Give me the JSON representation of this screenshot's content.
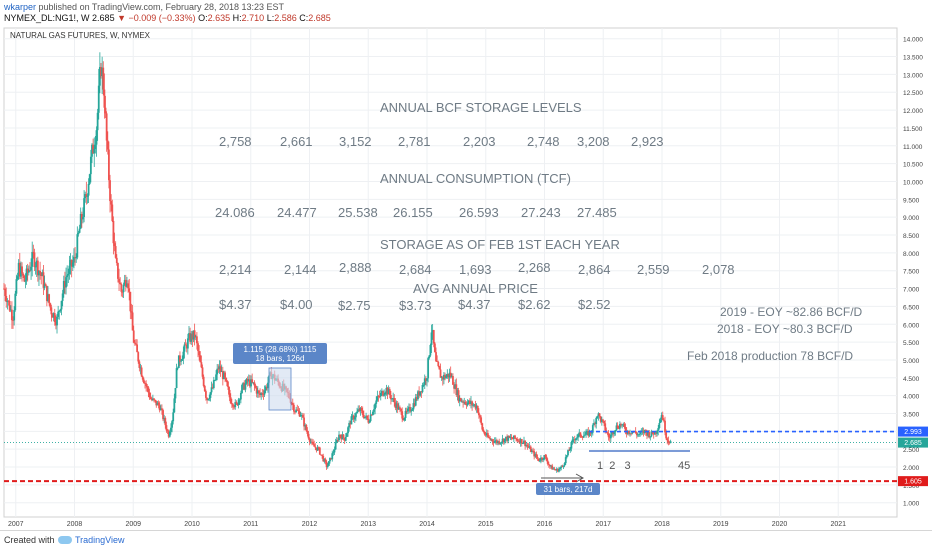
{
  "header": {
    "author": "wkarper",
    "published_text": "published on TradingView.com, February 28, 2018 13:23 EST",
    "symbol": "NYMEX_DL:NG1!, W",
    "last": "2.685",
    "change": "▼ −0.009 (−0.33%)",
    "o_label": "O:",
    "o_val": "2.635",
    "h_label": "H:",
    "h_val": "2.710",
    "l_label": "L:",
    "l_val": "2.586",
    "c_label": "C:",
    "c_val": "2.685"
  },
  "footer": {
    "created_with": "Created with",
    "brand": "TradingView"
  },
  "colors": {
    "up": "#26a69a",
    "down": "#ef5350",
    "annotation_text": "#6f7b85",
    "blue_dash": "#2962ff",
    "red_dash": "#e01b1b",
    "box_fill": "#5b86c8"
  },
  "chart_data": {
    "type": "candlestick",
    "title": "NATURAL GAS FUTURES, W, NYMEX",
    "x_ticks": [
      "2007",
      "2008",
      "2009",
      "2010",
      "2011",
      "2012",
      "2013",
      "2014",
      "2015",
      "2016",
      "2017",
      "2018",
      "2019",
      "2020",
      "2021"
    ],
    "y_ticks": [
      "14.000",
      "13.500",
      "13.000",
      "12.500",
      "12.000",
      "11.500",
      "11.000",
      "10.500",
      "10.000",
      "9.500",
      "9.000",
      "8.500",
      "8.000",
      "7.500",
      "7.000",
      "6.500",
      "6.000",
      "5.500",
      "5.000",
      "4.500",
      "4.000",
      "3.500",
      "3.000",
      "2.500",
      "2.000",
      "1.500",
      "1.000"
    ],
    "x_range": [
      2006.8,
      2022.0
    ],
    "y_range": [
      0.6,
      14.3
    ],
    "price_path": [
      [
        2006.8,
        7.0
      ],
      [
        2006.95,
        6.2
      ],
      [
        2007.05,
        7.6
      ],
      [
        2007.15,
        7.2
      ],
      [
        2007.3,
        7.9
      ],
      [
        2007.45,
        7.3
      ],
      [
        2007.6,
        6.4
      ],
      [
        2007.7,
        6.1
      ],
      [
        2007.85,
        7.3
      ],
      [
        2008.0,
        7.8
      ],
      [
        2008.1,
        8.8
      ],
      [
        2008.2,
        9.6
      ],
      [
        2008.3,
        10.8
      ],
      [
        2008.38,
        11.6
      ],
      [
        2008.45,
        13.3
      ],
      [
        2008.5,
        12.6
      ],
      [
        2008.55,
        11.0
      ],
      [
        2008.62,
        9.3
      ],
      [
        2008.7,
        7.7
      ],
      [
        2008.8,
        6.9
      ],
      [
        2008.9,
        7.4
      ],
      [
        2009.0,
        5.6
      ],
      [
        2009.15,
        4.6
      ],
      [
        2009.3,
        3.9
      ],
      [
        2009.45,
        3.7
      ],
      [
        2009.6,
        2.9
      ],
      [
        2009.67,
        3.4
      ],
      [
        2009.75,
        4.9
      ],
      [
        2009.85,
        5.2
      ],
      [
        2009.95,
        5.6
      ],
      [
        2010.05,
        5.7
      ],
      [
        2010.15,
        4.8
      ],
      [
        2010.25,
        3.9
      ],
      [
        2010.35,
        4.2
      ],
      [
        2010.45,
        4.8
      ],
      [
        2010.55,
        4.5
      ],
      [
        2010.65,
        3.9
      ],
      [
        2010.75,
        3.7
      ],
      [
        2010.85,
        4.2
      ],
      [
        2010.95,
        4.4
      ],
      [
        2011.05,
        4.3
      ],
      [
        2011.15,
        4.0
      ],
      [
        2011.25,
        4.2
      ],
      [
        2011.35,
        4.6
      ],
      [
        2011.45,
        4.4
      ],
      [
        2011.55,
        4.2
      ],
      [
        2011.65,
        4.0
      ],
      [
        2011.75,
        3.6
      ],
      [
        2011.85,
        3.5
      ],
      [
        2011.95,
        3.0
      ],
      [
        2012.05,
        2.6
      ],
      [
        2012.15,
        2.5
      ],
      [
        2012.3,
        2.0
      ],
      [
        2012.4,
        2.4
      ],
      [
        2012.5,
        2.9
      ],
      [
        2012.6,
        2.8
      ],
      [
        2012.7,
        3.3
      ],
      [
        2012.85,
        3.6
      ],
      [
        2013.0,
        3.3
      ],
      [
        2013.15,
        3.9
      ],
      [
        2013.3,
        4.2
      ],
      [
        2013.45,
        3.8
      ],
      [
        2013.6,
        3.4
      ],
      [
        2013.75,
        3.7
      ],
      [
        2013.9,
        4.2
      ],
      [
        2014.0,
        4.6
      ],
      [
        2014.08,
        5.9
      ],
      [
        2014.15,
        4.9
      ],
      [
        2014.25,
        4.5
      ],
      [
        2014.4,
        4.6
      ],
      [
        2014.55,
        3.9
      ],
      [
        2014.7,
        3.8
      ],
      [
        2014.85,
        3.7
      ],
      [
        2014.95,
        3.0
      ],
      [
        2015.05,
        2.8
      ],
      [
        2015.2,
        2.7
      ],
      [
        2015.35,
        2.8
      ],
      [
        2015.5,
        2.8
      ],
      [
        2015.65,
        2.7
      ],
      [
        2015.8,
        2.4
      ],
      [
        2015.9,
        2.2
      ],
      [
        2016.0,
        2.3
      ],
      [
        2016.1,
        2.0
      ],
      [
        2016.2,
        1.9
      ],
      [
        2016.3,
        2.0
      ],
      [
        2016.4,
        2.4
      ],
      [
        2016.5,
        2.8
      ],
      [
        2016.6,
        2.9
      ],
      [
        2016.7,
        2.9
      ],
      [
        2016.8,
        3.0
      ],
      [
        2016.9,
        3.5
      ],
      [
        2017.0,
        3.2
      ],
      [
        2017.1,
        2.8
      ],
      [
        2017.2,
        3.1
      ],
      [
        2017.3,
        3.2
      ],
      [
        2017.4,
        3.0
      ],
      [
        2017.5,
        3.0
      ],
      [
        2017.6,
        2.9
      ],
      [
        2017.7,
        3.0
      ],
      [
        2017.8,
        2.9
      ],
      [
        2017.9,
        3.0
      ],
      [
        2018.0,
        3.5
      ],
      [
        2018.08,
        2.8
      ],
      [
        2018.15,
        2.7
      ]
    ],
    "grid": "on"
  },
  "text": {
    "storage_title": "ANNUAL BCF STORAGE LEVELS",
    "storage_values": [
      "2,758",
      "2,661",
      "3,152",
      "2,781",
      "2,203",
      "2,748",
      "3,208",
      "2,923"
    ],
    "consumption_title": "ANNUAL CONSUMPTION (TCF)",
    "consumption_values": [
      "24.086",
      "24.477",
      "25.538",
      "26.155",
      "26.593",
      "27.243",
      "27.485"
    ],
    "feb_storage_title": "STORAGE AS OF FEB 1ST EACH YEAR",
    "feb_storage_values": [
      "2,214",
      "2,144",
      "2,888",
      "2,684",
      "1,693",
      "2,268",
      "2,864",
      "2,559",
      "2,078"
    ],
    "price_title": "AVG ANNUAL PRICE",
    "price_values": [
      "$4.37",
      "$4.00",
      "$2.75",
      "$3.73",
      "$4.37",
      "$2.62",
      "$2.52"
    ],
    "eoy_2019": "2019 - EOY ~82.86 BCF/D",
    "eoy_2018": "2018 - EOY ~80.3 BCF/D",
    "feb_production": "Feb 2018 production 78 BCF/D",
    "box1_line1": "1.115 (28.68%) 1115",
    "box1_line2": "18 bars, 126d",
    "box2": "31 bars, 217d",
    "count_labels": "1  2   3",
    "count_45": "45",
    "badge_blue": "2.993",
    "badge_green": "2.685",
    "badge_red": "1.605",
    "blue_level": 2.993,
    "red_level": 1.605
  }
}
